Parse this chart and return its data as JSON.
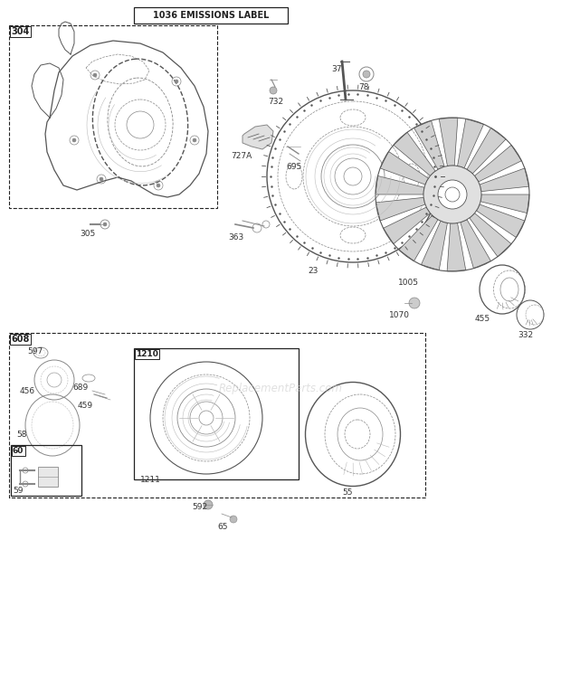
{
  "bg_color": "#ffffff",
  "emissions_label": "1036 EMISSIONS LABEL",
  "watermark": "ReplacementParts.com",
  "fig_w": 6.2,
  "fig_h": 7.44,
  "dpi": 100
}
